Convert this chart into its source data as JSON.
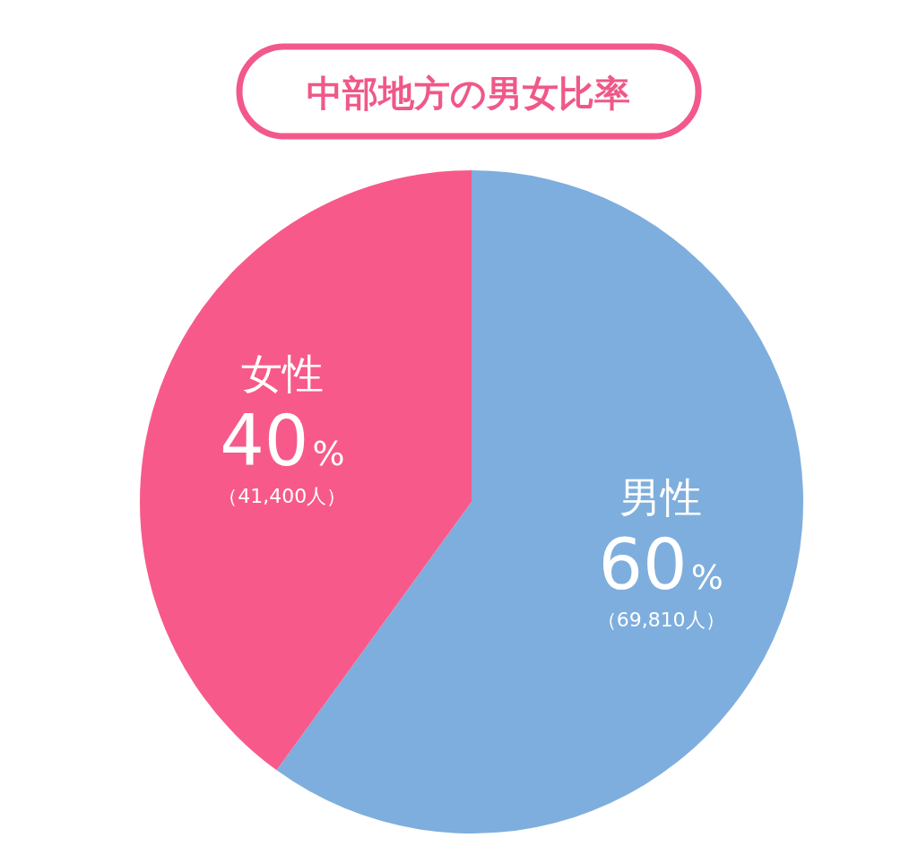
{
  "chart_data": {
    "type": "pie",
    "title": "中部地方の男女比率",
    "categories": [
      "男性",
      "女性"
    ],
    "values": [
      60,
      40
    ],
    "colors": [
      "#7eaedd",
      "#f75a8a"
    ],
    "value_labels": [
      "60%",
      "40%"
    ],
    "annotations": [
      "（69,810人）",
      "（41,400人）"
    ]
  }
}
